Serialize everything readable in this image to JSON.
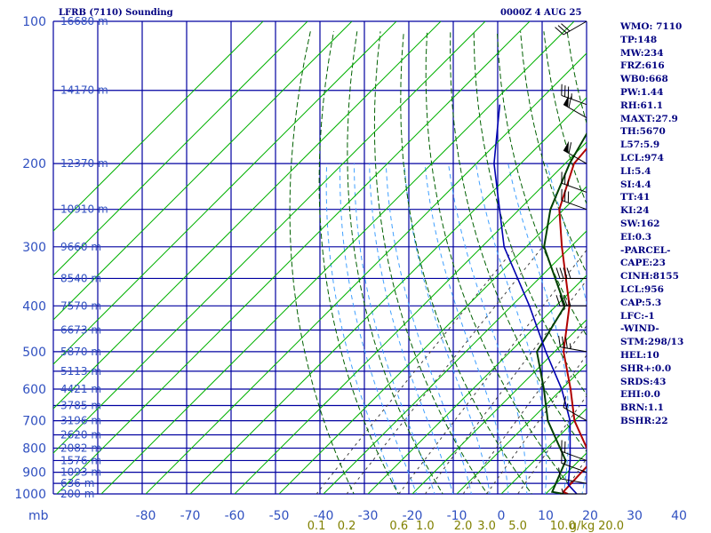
{
  "header": {
    "title": "LFRB (7110) Sounding",
    "valid_time": "0000Z  4 AUG 25"
  },
  "stats": [
    "WMO: 7110",
    "TP:148",
    "MW:234",
    "FRZ:616",
    "WB0:668",
    "PW:1.44",
    "RH:61.1",
    "MAXT:27.9",
    "TH:5670",
    "L57:5.9",
    "LCL:974",
    "LI:5.4",
    "SI:4.4",
    "TT:41",
    "KI:24",
    "SW:162",
    "EI:0.3",
    "-PARCEL-",
    "CAPE:23",
    "CINH:8155",
    "LCL:956",
    "CAP:5.3",
    "LFC:-1",
    "-WIND-",
    "STM:298/13",
    "HEL:10",
    "SHR+:0.0",
    "SRDS:43",
    "EHI:0.0",
    "BRN:1.1",
    "BSHR:22"
  ],
  "colors": {
    "grid": "#0000a0",
    "isotherm": "#00b000",
    "dry_adiabat": "#006000",
    "moist_adiabat": "#40a0ff",
    "mixing_ratio": "#404040",
    "temperature": "#b00000",
    "dewpoint": "#004000",
    "parcel": "#0000b0",
    "wind_barb": "#000000",
    "axis_label": "#3050c0",
    "mixing_label": "#808000"
  },
  "chart_data": {
    "type": "skew-t",
    "y_axis_label": "mb",
    "y_scale": "log",
    "pressure_levels": [
      100,
      200,
      300,
      400,
      500,
      600,
      700,
      800,
      900,
      1000
    ],
    "pressure_tick_labels": [
      "100",
      "200",
      "300",
      "400",
      "500",
      "600",
      "700",
      "800",
      "900",
      "1000"
    ],
    "temperature_ticks": [
      -80,
      -70,
      -60,
      -50,
      -40,
      -30,
      -20,
      -10,
      0,
      10,
      20,
      30,
      40
    ],
    "temperature_tick_labels": [
      "-80",
      "-70",
      "-60",
      "-50",
      "-40",
      "-30",
      "-20",
      "-10",
      "0",
      "10",
      "20",
      "30",
      "40"
    ],
    "mixing_ratio_labels": [
      "0.1",
      "0.2",
      "0.6",
      "1.0",
      "2.0",
      "3.0",
      "5.0",
      "10.0",
      "20.0",
      "g/kg"
    ],
    "heights": [
      {
        "p": 100,
        "label": "16680 m"
      },
      {
        "p": 140,
        "label": "14170 m"
      },
      {
        "p": 200,
        "label": "12370 m"
      },
      {
        "p": 250,
        "label": "10910 m"
      },
      {
        "p": 300,
        "label": "9660 m"
      },
      {
        "p": 350,
        "label": "8540 m"
      },
      {
        "p": 400,
        "label": "7570 m"
      },
      {
        "p": 450,
        "label": "6673 m"
      },
      {
        "p": 500,
        "label": "5870 m"
      },
      {
        "p": 550,
        "label": "5113 m"
      },
      {
        "p": 600,
        "label": "4421 m"
      },
      {
        "p": 650,
        "label": "3785 m"
      },
      {
        "p": 700,
        "label": "3196 m"
      },
      {
        "p": 750,
        "label": "2620 m"
      },
      {
        "p": 800,
        "label": "2082 m"
      },
      {
        "p": 850,
        "label": "1576 m"
      },
      {
        "p": 900,
        "label": "1093 m"
      },
      {
        "p": 950,
        "label": "636 m"
      },
      {
        "p": 1000,
        "label": "200 m"
      }
    ],
    "series": [
      {
        "key": "temperature",
        "points": [
          {
            "p": 1000,
            "t": 15
          },
          {
            "p": 990,
            "t": 13.5
          },
          {
            "p": 850,
            "t": 13
          },
          {
            "p": 700,
            "t": 0
          },
          {
            "p": 600,
            "t": -8
          },
          {
            "p": 500,
            "t": -18
          },
          {
            "p": 400,
            "t": -27
          },
          {
            "p": 300,
            "t": -42
          },
          {
            "p": 250,
            "t": -51
          },
          {
            "p": 200,
            "t": -58
          },
          {
            "p": 150,
            "t": -60
          },
          {
            "p": 140,
            "t": -58
          },
          {
            "p": 100,
            "t": -56
          }
        ]
      },
      {
        "key": "dewpoint",
        "points": [
          {
            "p": 1000,
            "t": 14
          },
          {
            "p": 990,
            "t": 11
          },
          {
            "p": 850,
            "t": 7
          },
          {
            "p": 700,
            "t": -6
          },
          {
            "p": 600,
            "t": -14
          },
          {
            "p": 500,
            "t": -24
          },
          {
            "p": 400,
            "t": -28
          },
          {
            "p": 300,
            "t": -46
          },
          {
            "p": 250,
            "t": -53
          },
          {
            "p": 200,
            "t": -59
          },
          {
            "p": 140,
            "t": -66
          },
          {
            "p": 100,
            "t": -73
          }
        ]
      },
      {
        "key": "parcel",
        "points": [
          {
            "p": 1000,
            "t": 17
          },
          {
            "p": 956,
            "t": 13
          },
          {
            "p": 850,
            "t": 8
          },
          {
            "p": 700,
            "t": -1
          },
          {
            "p": 600,
            "t": -10
          },
          {
            "p": 500,
            "t": -22
          },
          {
            "p": 400,
            "t": -36
          },
          {
            "p": 300,
            "t": -55
          },
          {
            "p": 200,
            "t": -76
          },
          {
            "p": 150,
            "t": -88
          }
        ]
      }
    ],
    "wind_barbs": [
      {
        "p": 1000,
        "dir": 270,
        "spd": 5
      },
      {
        "p": 950,
        "dir": 280,
        "spd": 10
      },
      {
        "p": 900,
        "dir": 290,
        "spd": 15
      },
      {
        "p": 850,
        "dir": 290,
        "spd": 20
      },
      {
        "p": 700,
        "dir": 300,
        "spd": 15
      },
      {
        "p": 500,
        "dir": 280,
        "spd": 35
      },
      {
        "p": 400,
        "dir": 270,
        "spd": 35
      },
      {
        "p": 350,
        "dir": 270,
        "spd": 40
      },
      {
        "p": 250,
        "dir": 290,
        "spd": 30
      },
      {
        "p": 230,
        "dir": 290,
        "spd": 25
      },
      {
        "p": 200,
        "dir": 300,
        "spd": 60
      },
      {
        "p": 160,
        "dir": 300,
        "spd": 60
      },
      {
        "p": 150,
        "dir": 290,
        "spd": 35
      },
      {
        "p": 100,
        "dir": 240,
        "spd": 30
      }
    ]
  }
}
